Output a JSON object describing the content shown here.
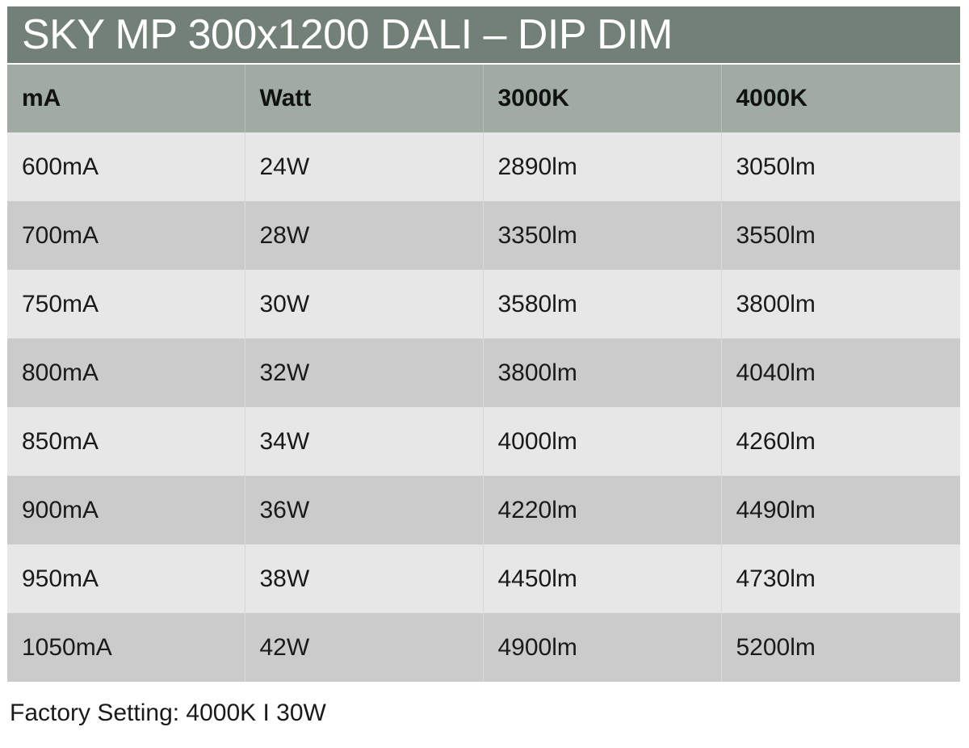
{
  "title": "SKY MP 300x1200 DALI – DIP DIM",
  "columns": [
    "mA",
    "Watt",
    "3000K",
    "4000K"
  ],
  "rows": [
    [
      "600mA",
      "24W",
      "2890lm",
      "3050lm"
    ],
    [
      "700mA",
      "28W",
      "3350lm",
      "3550lm"
    ],
    [
      "750mA",
      "30W",
      "3580lm",
      "3800lm"
    ],
    [
      "800mA",
      "32W",
      "3800lm",
      "4040lm"
    ],
    [
      "850mA",
      "34W",
      "4000lm",
      "4260lm"
    ],
    [
      "900mA",
      "36W",
      "4220lm",
      "4490lm"
    ],
    [
      "950mA",
      "38W",
      "4450lm",
      "4730lm"
    ],
    [
      "1050mA",
      "42W",
      "4900lm",
      "5200lm"
    ]
  ],
  "footer": "Factory Setting: 4000K I 30W",
  "colors": {
    "title_bar": "#728078",
    "header_row": "#a0aba4",
    "row_light": "#e7e7e7",
    "row_dark": "#cbcbcb"
  }
}
